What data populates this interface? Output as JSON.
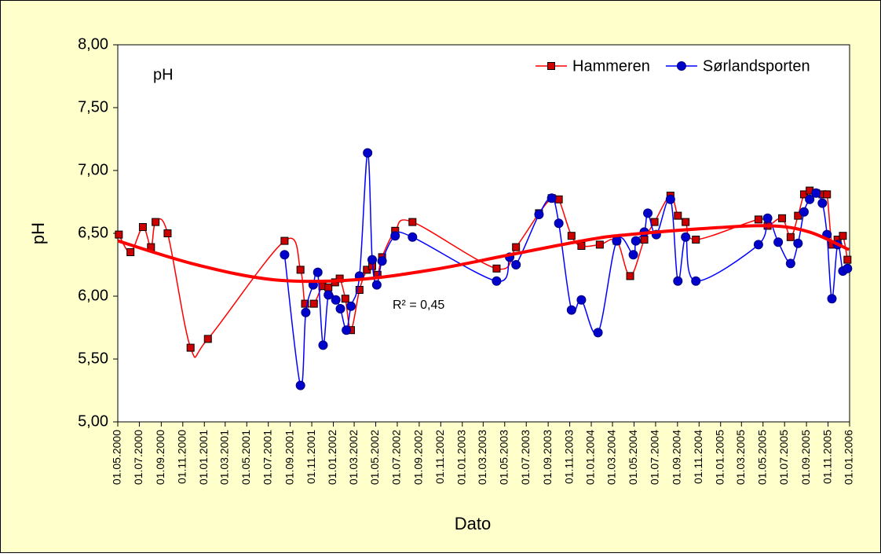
{
  "chart_data": {
    "type": "line",
    "annotations": [
      "pH",
      "R² = 0,45"
    ],
    "xlabel": "Dato",
    "ylabel": "pH",
    "legend": "upper right",
    "grid": false,
    "xlim": [
      "2000-05-01",
      "2006-01-01"
    ],
    "ylim": [
      5,
      8
    ],
    "yticks": [
      {
        "value": 5,
        "label": "5,00"
      },
      {
        "value": 5.5,
        "label": "5,50"
      },
      {
        "value": 6,
        "label": "6,00"
      },
      {
        "value": 6.5,
        "label": "6,50"
      },
      {
        "value": 7,
        "label": "7,00"
      },
      {
        "value": 7.5,
        "label": "7,50"
      },
      {
        "value": 8,
        "label": "8,00"
      }
    ],
    "xticks": [
      {
        "value": "2000-05-01",
        "label": "01.05.2000"
      },
      {
        "value": "2000-07-01",
        "label": "01.07.2000"
      },
      {
        "value": "2000-09-01",
        "label": "01.09.2000"
      },
      {
        "value": "2000-11-01",
        "label": "01.11.2000"
      },
      {
        "value": "2001-01-01",
        "label": "01.01.2001"
      },
      {
        "value": "2001-03-01",
        "label": "01.03.2001"
      },
      {
        "value": "2001-05-01",
        "label": "01.05.2001"
      },
      {
        "value": "2001-07-01",
        "label": "01.07.2001"
      },
      {
        "value": "2001-09-01",
        "label": "01.09.2001"
      },
      {
        "value": "2001-11-01",
        "label": "01.11.2001"
      },
      {
        "value": "2002-01-01",
        "label": "01.01.2002"
      },
      {
        "value": "2002-03-01",
        "label": "01.03.2002"
      },
      {
        "value": "2002-05-01",
        "label": "01.05.2002"
      },
      {
        "value": "2002-07-01",
        "label": "01.07.2002"
      },
      {
        "value": "2002-09-01",
        "label": "01.09.2002"
      },
      {
        "value": "2002-11-01",
        "label": "01.11.2002"
      },
      {
        "value": "2003-01-01",
        "label": "01.01.2003"
      },
      {
        "value": "2003-03-01",
        "label": "01.03.2003"
      },
      {
        "value": "2003-05-01",
        "label": "01.05.2003"
      },
      {
        "value": "2003-07-01",
        "label": "01.07.2003"
      },
      {
        "value": "2003-09-01",
        "label": "01.09.2003"
      },
      {
        "value": "2003-11-01",
        "label": "01.11.2003"
      },
      {
        "value": "2004-01-01",
        "label": "01.01.2004"
      },
      {
        "value": "2004-03-01",
        "label": "01.03.2004"
      },
      {
        "value": "2004-05-01",
        "label": "01.05.2004"
      },
      {
        "value": "2004-07-01",
        "label": "01.07.2004"
      },
      {
        "value": "2004-09-01",
        "label": "01.09.2004"
      },
      {
        "value": "2004-11-01",
        "label": "01.11.2004"
      },
      {
        "value": "2005-01-01",
        "label": "01.01.2005"
      },
      {
        "value": "2005-03-01",
        "label": "01.03.2005"
      },
      {
        "value": "2005-05-01",
        "label": "01.05.2005"
      },
      {
        "value": "2005-07-01",
        "label": "01.07.2005"
      },
      {
        "value": "2005-09-01",
        "label": "01.09.2005"
      },
      {
        "value": "2005-11-01",
        "label": "01.11.2005"
      },
      {
        "value": "2006-01-01",
        "label": "01.01.2006"
      }
    ],
    "series": [
      {
        "name": "Hammeren",
        "color": "#ff0000",
        "marker_color": "#cc0000",
        "marker": "square",
        "x": [
          "2000-05-04",
          "2000-06-06",
          "2000-07-11",
          "2000-08-03",
          "2000-08-16",
          "2000-09-19",
          "2000-11-23",
          "2001-01-11",
          "2001-08-16",
          "2001-09-30",
          "2001-10-13",
          "2001-11-07",
          "2001-12-01",
          "2001-12-18",
          "2002-01-06",
          "2002-01-19",
          "2002-02-04",
          "2002-02-20",
          "2002-03-16",
          "2002-04-06",
          "2002-04-21",
          "2002-05-06",
          "2002-05-19",
          "2002-06-25",
          "2002-08-13",
          "2003-04-08",
          "2003-06-02",
          "2003-08-06",
          "2003-09-11",
          "2003-10-01",
          "2003-11-06",
          "2003-12-04",
          "2004-01-25",
          "2004-03-13",
          "2004-04-20",
          "2004-05-30",
          "2004-06-28",
          "2004-08-12",
          "2004-09-02",
          "2004-09-24",
          "2004-10-23",
          "2005-04-18",
          "2005-05-14",
          "2005-06-24",
          "2005-07-18",
          "2005-08-08",
          "2005-08-25",
          "2005-09-10",
          "2005-09-28",
          "2005-10-16",
          "2005-10-29",
          "2005-11-12",
          "2005-11-28",
          "2005-12-13",
          "2005-12-26"
        ],
        "values": [
          6.49,
          6.35,
          6.55,
          6.39,
          6.59,
          6.5,
          5.59,
          5.66,
          6.44,
          6.21,
          5.94,
          5.94,
          6.08,
          6.07,
          6.11,
          6.14,
          5.98,
          5.73,
          6.05,
          6.21,
          6.24,
          6.17,
          6.31,
          6.52,
          6.59,
          6.22,
          6.39,
          6.66,
          6.78,
          6.77,
          6.48,
          6.4,
          6.41,
          6.44,
          6.16,
          6.45,
          6.59,
          6.8,
          6.64,
          6.59,
          6.45,
          6.61,
          6.56,
          6.62,
          6.47,
          6.64,
          6.81,
          6.84,
          6.82,
          6.81,
          6.81,
          6.41,
          6.45,
          6.48,
          6.29
        ]
      },
      {
        "name": "Sørlandsporten",
        "color": "#0000ff",
        "marker_color": "#0000cc",
        "marker": "circle",
        "x": [
          "2001-08-16",
          "2001-09-30",
          "2001-10-15",
          "2001-11-05",
          "2001-11-18",
          "2001-12-03",
          "2001-12-18",
          "2002-01-08",
          "2002-01-21",
          "2002-02-07",
          "2002-02-20",
          "2002-03-16",
          "2002-04-08",
          "2002-04-21",
          "2002-05-04",
          "2002-05-19",
          "2002-06-25",
          "2002-08-13",
          "2003-04-08",
          "2003-05-15",
          "2003-06-02",
          "2003-08-06",
          "2003-09-11",
          "2003-10-01",
          "2003-11-06",
          "2003-12-04",
          "2004-01-20",
          "2004-03-13",
          "2004-04-29",
          "2004-05-06",
          "2004-05-30",
          "2004-06-09",
          "2004-07-03",
          "2004-08-12",
          "2004-09-02",
          "2004-09-24",
          "2004-10-23",
          "2005-04-18",
          "2005-05-14",
          "2005-06-13",
          "2005-07-18",
          "2005-08-08",
          "2005-08-25",
          "2005-09-10",
          "2005-09-28",
          "2005-10-16",
          "2005-10-29",
          "2005-11-12",
          "2005-11-28",
          "2005-12-13",
          "2005-12-26"
        ],
        "values": [
          6.33,
          5.29,
          5.87,
          6.09,
          6.19,
          5.61,
          6.01,
          5.97,
          5.9,
          5.73,
          5.92,
          6.16,
          7.14,
          6.29,
          6.09,
          6.28,
          6.48,
          6.47,
          6.12,
          6.31,
          6.25,
          6.65,
          6.78,
          6.58,
          5.89,
          5.97,
          5.71,
          6.44,
          6.33,
          6.44,
          6.51,
          6.66,
          6.49,
          6.77,
          6.12,
          6.47,
          6.12,
          6.41,
          6.62,
          6.43,
          6.26,
          6.42,
          6.67,
          6.77,
          6.82,
          6.74,
          6.49,
          5.98,
          6.41,
          6.2,
          6.22
        ]
      }
    ],
    "trendline": {
      "color": "#ff0000",
      "x": [
        "2000-05-01",
        "2000-12-10",
        "2001-07-19",
        "2002-02-28",
        "2002-10-08",
        "2003-05-17",
        "2003-12-26",
        "2004-04-16",
        "2004-11-25",
        "2005-05-20",
        "2005-09-10",
        "2005-12-30"
      ],
      "values": [
        6.44,
        6.25,
        6.13,
        6.13,
        6.21,
        6.33,
        6.45,
        6.49,
        6.54,
        6.56,
        6.51,
        6.37
      ]
    }
  }
}
